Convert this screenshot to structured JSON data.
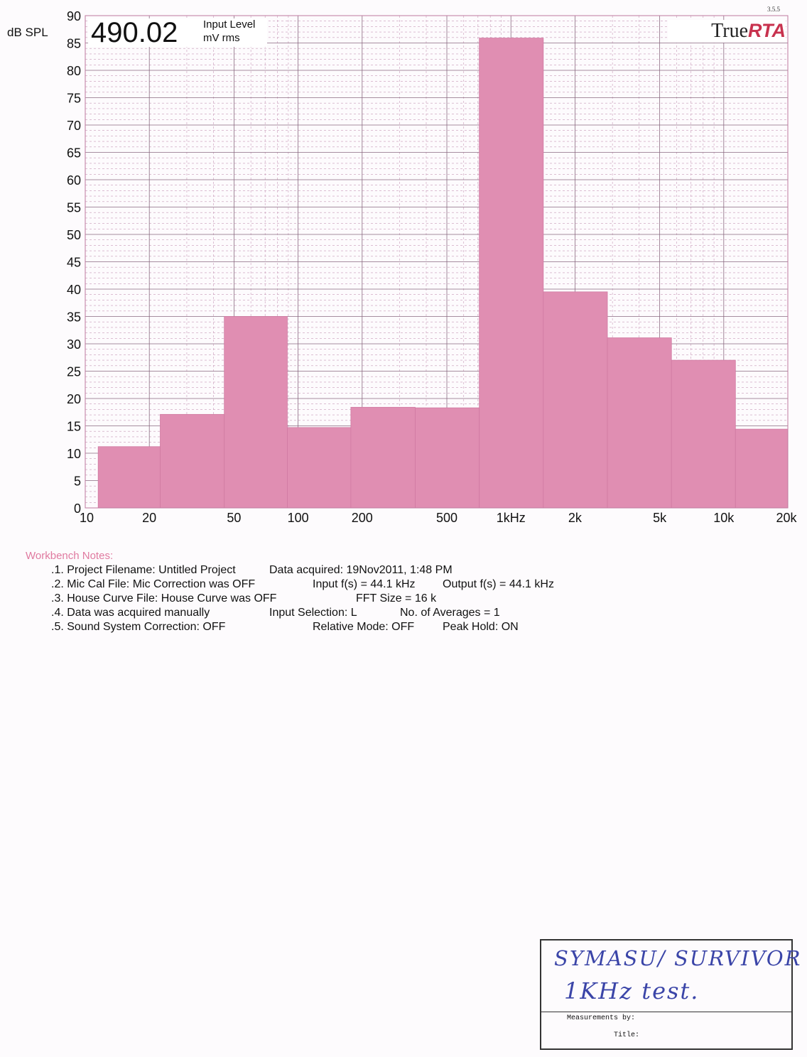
{
  "version": "3.5.5",
  "readout": {
    "value": "490.02",
    "label_line1": "Input Level",
    "label_line2": "mV rms"
  },
  "logo": {
    "part1": "True",
    "part2": "RTA"
  },
  "chart_data": {
    "type": "bar",
    "ylabel": "dB SPL",
    "ylim": [
      0,
      90
    ],
    "y_ticks": [
      0,
      5,
      10,
      15,
      20,
      25,
      30,
      35,
      40,
      45,
      50,
      55,
      60,
      65,
      70,
      75,
      80,
      85,
      90
    ],
    "x_scale": "log",
    "xlim": [
      10,
      20000
    ],
    "x_ticks": [
      10,
      20,
      50,
      100,
      200,
      500,
      1000,
      2000,
      5000,
      10000,
      20000
    ],
    "x_tick_labels": [
      "10",
      "20",
      "50",
      "100",
      "200",
      "500",
      "1kHz",
      "2k",
      "5k",
      "10k",
      "20k"
    ],
    "bar_edges_hz": [
      11.5,
      22.5,
      45,
      89,
      177,
      355,
      710,
      1420,
      2840,
      5680,
      11350,
      20000
    ],
    "bar_centers_hz": [
      16,
      31.5,
      63,
      125,
      250,
      500,
      1000,
      2000,
      4000,
      8000,
      16000
    ],
    "values": [
      11.2,
      17.1,
      35.0,
      14.7,
      18.4,
      18.3,
      85.9,
      39.5,
      31.1,
      27.0,
      14.4
    ],
    "bar_color": "#e08eb2",
    "grid": true,
    "grid_color": "#c89ab8"
  },
  "notes": {
    "title": "Workbench Notes:",
    "lines": [
      [
        ".1. Project Filename: Untitled Project",
        "Data acquired: 19Nov2011, 1:48 PM"
      ],
      [
        ".2. Mic Cal File: Mic Correction was OFF",
        "Input f(s) = 44.1 kHz",
        "Output f(s) = 44.1 kHz"
      ],
      [
        ".3. House Curve File: House Curve was OFF",
        "FFT Size = 16 k"
      ],
      [
        ".4. Data was acquired manually",
        "Input Selection: L",
        "No. of Averages = 1"
      ],
      [
        ".5. Sound System Correction: OFF",
        "Relative Mode:  OFF",
        "Peak Hold: ON"
      ]
    ]
  },
  "signature_box": {
    "handwritten_line1": "SYMASU/ SURVIVOR",
    "handwritten_line2": "1KHz test.",
    "measurements_by": "Measurements by:",
    "title": "Title:"
  }
}
